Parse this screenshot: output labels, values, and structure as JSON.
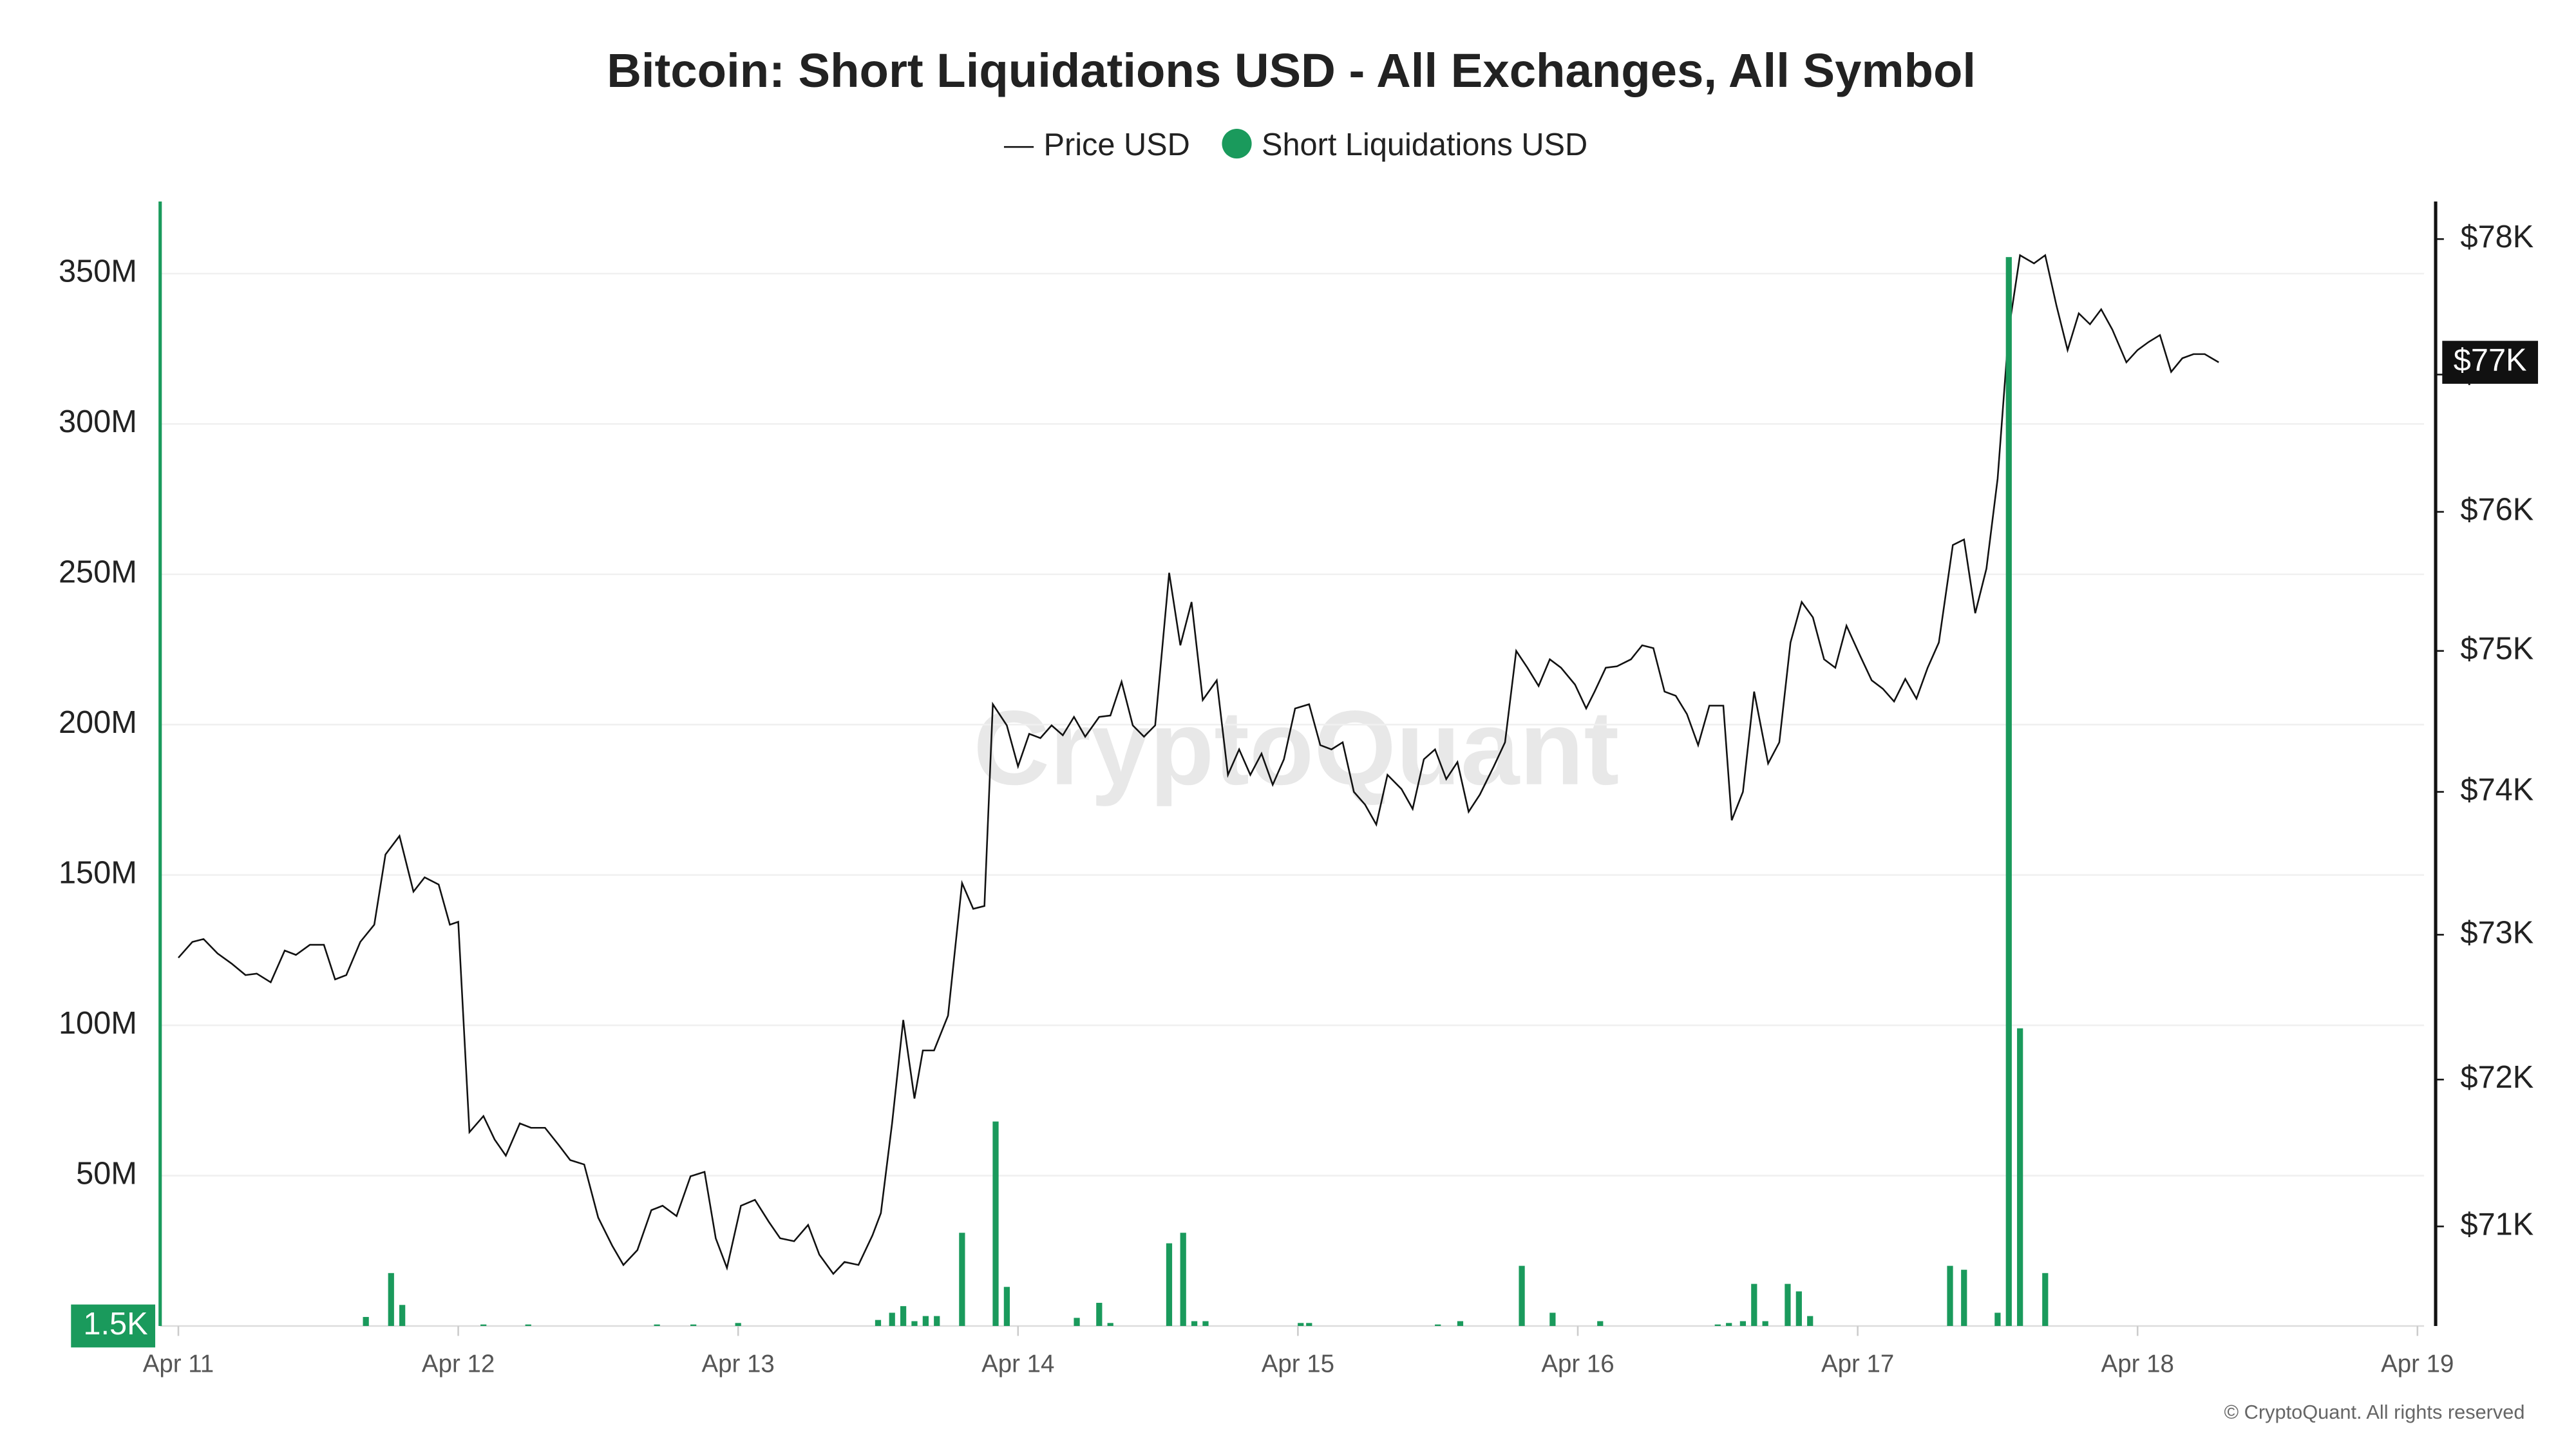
{
  "chart_data": {
    "type": "combo",
    "title": "Bitcoin: Short Liquidations USD - All Exchanges, All Symbol",
    "watermark": "CryptoQuant",
    "footer": "© CryptoQuant. All rights reserved",
    "xlim": [
      -0.065,
      8.065
    ],
    "xticks": [
      {
        "value": 0,
        "label": "Apr 11"
      },
      {
        "value": 1,
        "label": "Apr 12"
      },
      {
        "value": 2,
        "label": "Apr 13"
      },
      {
        "value": 3,
        "label": "Apr 14"
      },
      {
        "value": 4,
        "label": "Apr 15"
      },
      {
        "value": 5,
        "label": "Apr 16"
      },
      {
        "value": 6,
        "label": "Apr 17"
      },
      {
        "value": 7,
        "label": "Apr 18"
      },
      {
        "value": 8,
        "label": "Apr 19"
      }
    ],
    "ylim": [
      0,
      374000000
    ],
    "yticks": [
      {
        "value": 50000000,
        "label": "50M"
      },
      {
        "value": 100000000,
        "label": "100M"
      },
      {
        "value": 150000000,
        "label": "150M"
      },
      {
        "value": 200000000,
        "label": "200M"
      },
      {
        "value": 250000000,
        "label": "250M"
      },
      {
        "value": 300000000,
        "label": "300M"
      },
      {
        "value": 350000000,
        "label": "350M"
      }
    ],
    "y_last_label": {
      "value": 1500,
      "label": "1.5K"
    },
    "y2lim": [
      70330,
      78280
    ],
    "y2scale": "log",
    "y2ticks": [
      {
        "value": 71000,
        "label": "$71K"
      },
      {
        "value": 72000,
        "label": "$72K"
      },
      {
        "value": 73000,
        "label": "$73K"
      },
      {
        "value": 74000,
        "label": "$74K"
      },
      {
        "value": 75000,
        "label": "$75K"
      },
      {
        "value": 76000,
        "label": "$76K"
      },
      {
        "value": 77000,
        "label": "$77K"
      },
      {
        "value": 78000,
        "label": "$78K"
      }
    ],
    "y2_last_label": {
      "value": 77090,
      "label": "$77K"
    },
    "grid": true,
    "series": [
      {
        "name": "Price USD",
        "type": "line",
        "axis": "y2",
        "color": "#111111",
        "x": [
          0,
          0.05,
          0.09,
          0.14,
          0.19,
          0.24,
          0.28,
          0.33,
          0.38,
          0.42,
          0.47,
          0.52,
          0.56,
          0.6,
          0.65,
          0.7,
          0.74,
          0.79,
          0.84,
          0.88,
          0.93,
          0.97,
          1.0,
          1.04,
          1.09,
          1.13,
          1.17,
          1.22,
          1.26,
          1.31,
          1.36,
          1.4,
          1.45,
          1.5,
          1.55,
          1.59,
          1.64,
          1.69,
          1.73,
          1.78,
          1.83,
          1.88,
          1.92,
          1.96,
          2.01,
          2.06,
          2.11,
          2.15,
          2.2,
          2.25,
          2.29,
          2.34,
          2.38,
          2.43,
          2.48,
          2.51,
          2.55,
          2.59,
          2.63,
          2.66,
          2.7,
          2.75,
          2.8,
          2.84,
          2.88,
          2.91,
          2.96,
          3.0,
          3.04,
          3.08,
          3.12,
          3.16,
          3.2,
          3.24,
          3.29,
          3.33,
          3.37,
          3.41,
          3.45,
          3.49,
          3.54,
          3.58,
          3.62,
          3.66,
          3.71,
          3.75,
          3.79,
          3.83,
          3.87,
          3.91,
          3.95,
          3.99,
          4.04,
          4.08,
          4.12,
          4.16,
          4.2,
          4.24,
          4.28,
          4.32,
          4.37,
          4.41,
          4.45,
          4.49,
          4.53,
          4.57,
          4.61,
          4.65,
          4.7,
          4.74,
          4.78,
          4.82,
          4.86,
          4.9,
          4.94,
          4.99,
          5.03,
          5.06,
          5.1,
          5.14,
          5.19,
          5.23,
          5.27,
          5.31,
          5.35,
          5.39,
          5.43,
          5.47,
          5.52,
          5.55,
          5.59,
          5.63,
          5.68,
          5.72,
          5.76,
          5.8,
          5.84,
          5.88,
          5.92,
          5.96,
          6.01,
          6.05,
          6.09,
          6.13,
          6.17,
          6.21,
          6.25,
          6.29,
          6.34,
          6.38,
          6.42,
          6.46,
          6.5,
          6.54,
          6.58,
          6.63,
          6.67,
          6.71,
          6.75,
          6.79,
          6.83,
          6.87,
          6.91,
          6.96,
          7.0,
          7.04,
          7.08,
          7.12,
          7.16,
          7.2,
          7.24,
          7.29
        ],
        "values": [
          72840,
          72950,
          72970,
          72870,
          72800,
          72720,
          72730,
          72670,
          72890,
          72860,
          72930,
          72930,
          72690,
          72720,
          72950,
          73070,
          73560,
          73690,
          73300,
          73400,
          73350,
          73070,
          73090,
          71640,
          71750,
          71590,
          71480,
          71700,
          71670,
          71670,
          71550,
          71450,
          71420,
          71060,
          70870,
          70740,
          70840,
          71110,
          71140,
          71070,
          71340,
          71370,
          70920,
          70720,
          71140,
          71180,
          71030,
          70920,
          70900,
          71010,
          70810,
          70680,
          70760,
          70740,
          70940,
          71090,
          71700,
          72410,
          71870,
          72200,
          72200,
          72440,
          73360,
          73180,
          73200,
          74620,
          74470,
          74180,
          74410,
          74380,
          74470,
          74400,
          74530,
          74390,
          74530,
          74540,
          74780,
          74470,
          74390,
          74470,
          75560,
          75040,
          75350,
          74650,
          74790,
          74120,
          74300,
          74120,
          74270,
          74050,
          74230,
          74590,
          74620,
          74330,
          74300,
          74350,
          74000,
          73910,
          73770,
          74120,
          74020,
          73880,
          74230,
          74300,
          74090,
          74210,
          73860,
          73980,
          74180,
          74350,
          75000,
          74880,
          74750,
          74940,
          74880,
          74760,
          74590,
          74710,
          74880,
          74890,
          74940,
          75040,
          75020,
          74710,
          74680,
          74550,
          74330,
          74610,
          74610,
          73800,
          74000,
          74710,
          74200,
          74350,
          75060,
          75350,
          75240,
          74940,
          74880,
          75180,
          74960,
          74790,
          74730,
          74640,
          74800,
          74660,
          74880,
          75060,
          75760,
          75800,
          75270,
          75590,
          76240,
          77330,
          77880,
          77820,
          77880,
          77510,
          77180,
          77450,
          77370,
          77480,
          77330,
          77090,
          77180,
          77240,
          77290,
          77020,
          77120,
          77150,
          77150,
          77090
        ]
      },
      {
        "name": "Short Liquidations USD",
        "type": "bar",
        "axis": "y",
        "color": "#1a9a5c",
        "x": [
          0.67,
          0.76,
          0.8,
          1.09,
          1.25,
          1.71,
          1.84,
          2.0,
          2.5,
          2.55,
          2.59,
          2.63,
          2.67,
          2.71,
          2.8,
          2.92,
          2.96,
          3.21,
          3.29,
          3.33,
          3.54,
          3.59,
          3.63,
          3.67,
          4.01,
          4.04,
          4.5,
          4.58,
          4.8,
          4.91,
          5.08,
          5.5,
          5.54,
          5.59,
          5.63,
          5.67,
          5.75,
          5.79,
          5.83,
          6.33,
          6.38,
          6.5,
          6.54,
          6.58,
          6.67
        ],
        "values": [
          3000000,
          17600000,
          7000000,
          500000,
          500000,
          500000,
          500000,
          1000000,
          2000000,
          4400000,
          6600000,
          1600000,
          3300000,
          3300000,
          31000000,
          68000000,
          13000000,
          2700000,
          7700000,
          1000000,
          27500000,
          31000000,
          1600000,
          1600000,
          1000000,
          1000000,
          500000,
          1600000,
          20000000,
          4400000,
          1600000,
          500000,
          1000000,
          1600000,
          14000000,
          1600000,
          14000000,
          11500000,
          3300000,
          20000000,
          18700000,
          4400000,
          355500000,
          99000000,
          17600000
        ]
      }
    ]
  }
}
